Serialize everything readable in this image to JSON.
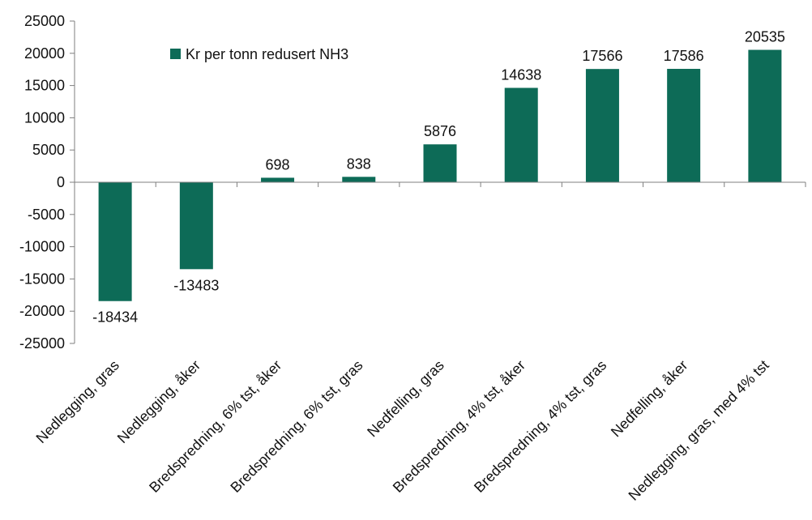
{
  "chart_data": {
    "type": "bar",
    "categories": [
      "Nedlegging, gras",
      "Nedlegging, åker",
      "Bredspredning, 6% tst, åker",
      "Bredspredning, 6% tst, gras",
      "Nedfelling, gras",
      "Bredspredning, 4% tst, åker",
      "Bredspredning, 4% tst, gras",
      "Nedfelling, åker",
      "Nedlegging, gras, med 4% tst"
    ],
    "series": [
      {
        "name": "Kr per tonn redusert NH3",
        "values": [
          -18434,
          -13483,
          698,
          838,
          5876,
          14638,
          17566,
          17586,
          20535
        ],
        "color": "#0d6b57"
      }
    ],
    "data_labels": [
      "-18434",
      "-13483",
      "698",
      "838",
      "5876",
      "14638",
      "17566",
      "17586",
      "20535"
    ],
    "y_ticks": [
      "25000",
      "20000",
      "15000",
      "10000",
      "5000",
      "0",
      "-5000",
      "-10000",
      "-15000",
      "-20000",
      "-25000"
    ],
    "ylim": [
      -25000,
      25000
    ],
    "grid": false,
    "legend_position": "top-left"
  }
}
